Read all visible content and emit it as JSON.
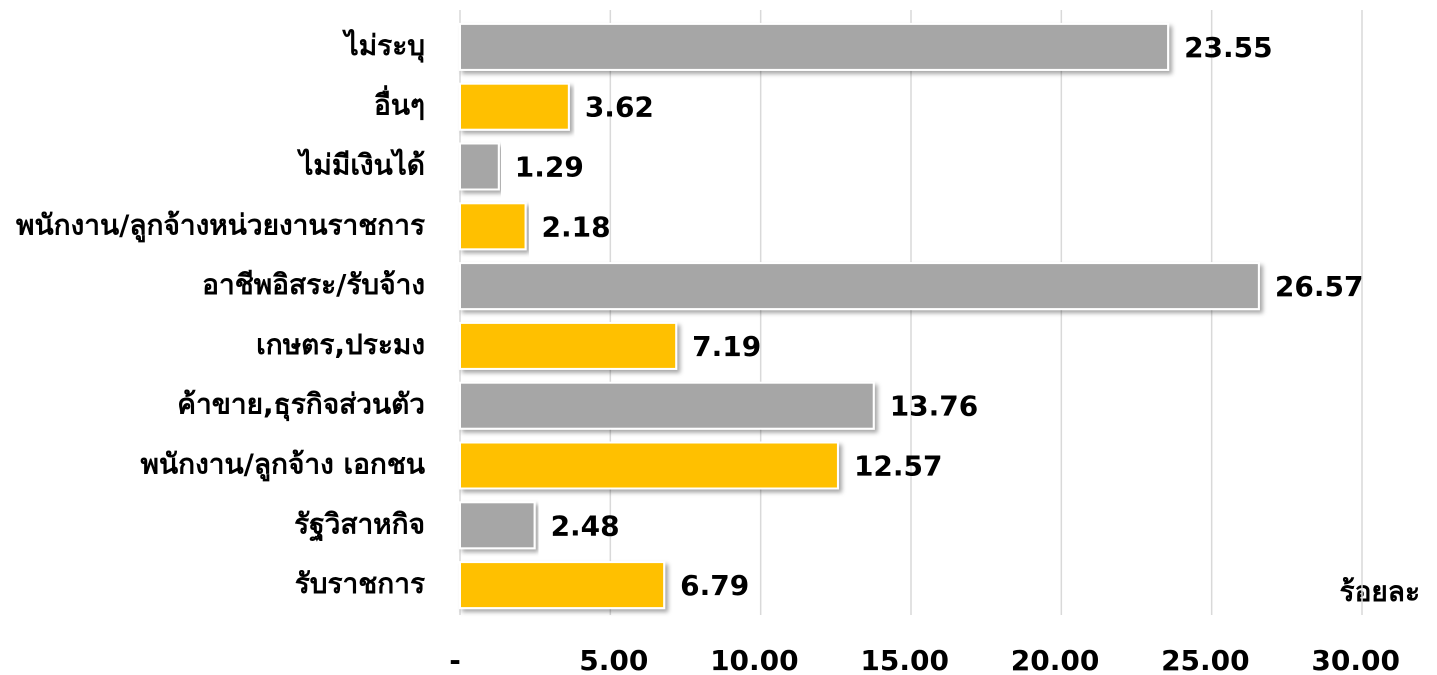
{
  "chart_data": {
    "type": "bar",
    "orientation": "horizontal",
    "categories": [
      "ไม่ระบุ",
      "อื่นๆ",
      "ไม่มีเงินได้",
      "พนักงาน/ลูกจ้างหน่วยงานราชการ",
      "อาชีพอิสระ/รับจ้าง",
      "เกษตร,ประมง",
      "ค้าขาย,ธุรกิจส่วนตัว",
      "พนักงาน/ลูกจ้าง เอกชน",
      "รัฐวิสาหกิจ",
      "รับราชการ"
    ],
    "values": [
      23.55,
      3.62,
      1.29,
      2.18,
      26.57,
      7.19,
      13.76,
      12.57,
      2.48,
      6.79
    ],
    "colors": [
      "#a6a6a6",
      "#ffc000",
      "#a6a6a6",
      "#ffc000",
      "#a6a6a6",
      "#ffc000",
      "#a6a6a6",
      "#ffc000",
      "#a6a6a6",
      "#ffc000"
    ],
    "xlabel": "ร้อยละ",
    "xlim": [
      0,
      30
    ],
    "xticks": [
      {
        "value": 0,
        "label": "-"
      },
      {
        "value": 5,
        "label": "5.00"
      },
      {
        "value": 10,
        "label": "10.00"
      },
      {
        "value": 15,
        "label": "15.00"
      },
      {
        "value": 20,
        "label": "20.00"
      },
      {
        "value": 25,
        "label": "25.00"
      },
      {
        "value": 30,
        "label": "30.00"
      }
    ],
    "grid": true
  }
}
